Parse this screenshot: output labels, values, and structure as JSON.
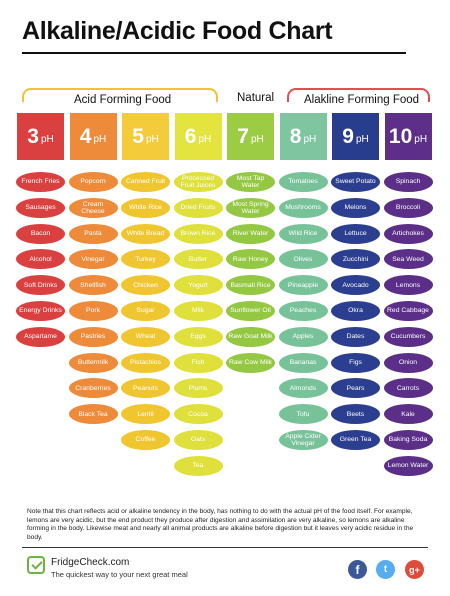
{
  "title": "Alkaline/Acidic Food Chart",
  "categories": {
    "acid": "Acid Forming Food",
    "neutral": "Natural",
    "alkaline": "Alakline Forming Food"
  },
  "chart_data": {
    "type": "table",
    "title": "Alkaline/Acidic Food Chart",
    "columns": [
      {
        "ph": "3",
        "unit": "pH",
        "color": "#d9403f",
        "food_color": "#d9403f",
        "foods": [
          "French Fries",
          "Sausages",
          "Bacon",
          "Alcohol",
          "Soft Drinks",
          "Energy Drinks",
          "Aspartame"
        ]
      },
      {
        "ph": "4",
        "unit": "pH",
        "color": "#ed8b3b",
        "food_color": "#ed8b3b",
        "foods": [
          "Popcorn",
          "Cream Cheese",
          "Pasta",
          "Vinegar",
          "Shellfish",
          "Pork",
          "Pastries",
          "Buttermilk",
          "Cranberries",
          "Black Tea"
        ]
      },
      {
        "ph": "5",
        "unit": "pH",
        "color": "#f4cb3a",
        "food_color": "#f0c630",
        "foods": [
          "Canned Fruit",
          "White Rice",
          "White Bread",
          "Turkey",
          "Chicken",
          "Sugar",
          "Wheat",
          "Pistachios",
          "Peanuts",
          "Lentil",
          "Coffee"
        ]
      },
      {
        "ph": "6",
        "unit": "pH",
        "color": "#e3e43f",
        "food_color": "#dfe03c",
        "foods": [
          "Processed Fruit Juices",
          "Dried Fruits",
          "Brown Rice",
          "Butter",
          "Yogurt",
          "Milk",
          "Eggs",
          "Fish",
          "Plums",
          "Cocoa",
          "Oats",
          "Tea"
        ]
      },
      {
        "ph": "7",
        "unit": "pH",
        "color": "#9ccb44",
        "food_color": "#95c842",
        "foods": [
          "Most Tap Water",
          "Most Spring Water",
          "River Water",
          "Raw Honey",
          "Basmati Rice",
          "Sunflower Oil",
          "Raw Goat Milk",
          "Raw Cow Milk"
        ]
      },
      {
        "ph": "8",
        "unit": "pH",
        "color": "#7fc5a0",
        "food_color": "#78c29a",
        "foods": [
          "Tomatoes",
          "Mushrooms",
          "Wild Rice",
          "Olives",
          "Pineapple",
          "Peaches",
          "Apples",
          "Bananas",
          "Almonds",
          "Tofu",
          "Apple Cider Vinegar"
        ]
      },
      {
        "ph": "9",
        "unit": "pH",
        "color": "#283d8d",
        "food_color": "#2b3e90",
        "foods": [
          "Sweet Potato",
          "Melons",
          "Lettuce",
          "Zucchini",
          "Avocado",
          "Okra",
          "Dates",
          "Figs",
          "Pears",
          "Beets",
          "Green Tea"
        ]
      },
      {
        "ph": "10",
        "unit": "pH",
        "color": "#5e2f89",
        "food_color": "#5b2e88",
        "foods": [
          "Spinach",
          "Broccoli",
          "Artichokes",
          "Sea Weed",
          "Lemons",
          "Red Cabbage",
          "Cucumbers",
          "Onion",
          "Carrots",
          "Kale",
          "Baking Soda",
          "Lemon Water"
        ]
      }
    ]
  },
  "note": "Note that this chart reflects acid or alkaline tendency in the body, has nothing to do with the actual pH of the food itself. For example, lemons are very acidic, but the end product they produce after digestion and assimilation are very alkaline, so lemons are alkaline forming in the body. Likewise meat and nearly all animal products are alkaline before digestion but it leaves very acidic residue in the body.",
  "footer": {
    "brand": "FridgeCheck.com",
    "tagline": "The quickest way to your next great meal",
    "social": {
      "facebook": "f",
      "twitter": "t",
      "google": "g+"
    }
  },
  "icons": {
    "logo": "fridgecheck-logo-icon",
    "facebook": "facebook-icon",
    "twitter": "twitter-icon",
    "google": "google-plus-icon"
  }
}
